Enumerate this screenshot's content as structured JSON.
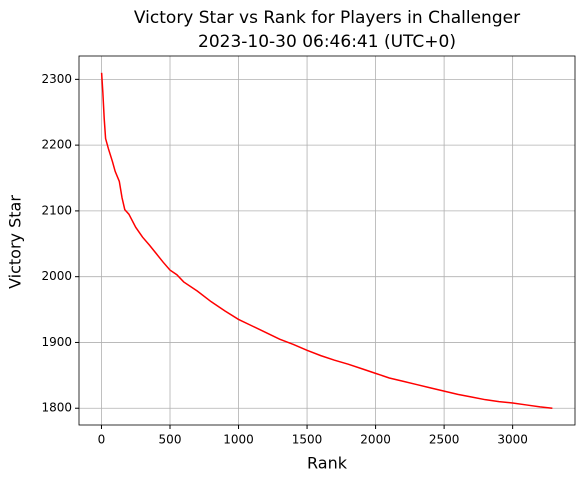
{
  "chart_data": {
    "type": "line",
    "title": "Victory Star vs Rank for Players in Challenger",
    "subtitle": "2023-10-30 06:46:41 (UTC+0)",
    "x_label": "Rank",
    "y_label": "Victory Star",
    "x": [
      1,
      10,
      20,
      30,
      50,
      80,
      100,
      130,
      150,
      170,
      200,
      250,
      300,
      350,
      400,
      450,
      500,
      550,
      600,
      700,
      800,
      900,
      1000,
      1100,
      1200,
      1300,
      1400,
      1500,
      1600,
      1700,
      1800,
      1900,
      2000,
      2100,
      2200,
      2300,
      2400,
      2500,
      2600,
      2700,
      2800,
      2900,
      3000,
      3100,
      3200,
      3290
    ],
    "series": [
      {
        "name": "Victory Star",
        "color": "#ff0000",
        "values": [
          2310,
          2280,
          2240,
          2210,
          2195,
          2175,
          2160,
          2145,
          2120,
          2102,
          2095,
          2075,
          2060,
          2048,
          2035,
          2022,
          2010,
          2003,
          1992,
          1978,
          1962,
          1948,
          1935,
          1925,
          1915,
          1905,
          1897,
          1888,
          1880,
          1873,
          1867,
          1860,
          1853,
          1846,
          1841,
          1836,
          1831,
          1826,
          1821,
          1817,
          1813,
          1810,
          1808,
          1805,
          1802,
          1800
        ]
      }
    ],
    "xlim": [
      -164,
      3455
    ],
    "ylim": [
      1774.5,
      2335.5
    ],
    "xticks": [
      0,
      500,
      1000,
      1500,
      2000,
      2500,
      3000
    ],
    "yticks": [
      1800,
      1900,
      2000,
      2100,
      2200,
      2300
    ],
    "grid": true
  }
}
